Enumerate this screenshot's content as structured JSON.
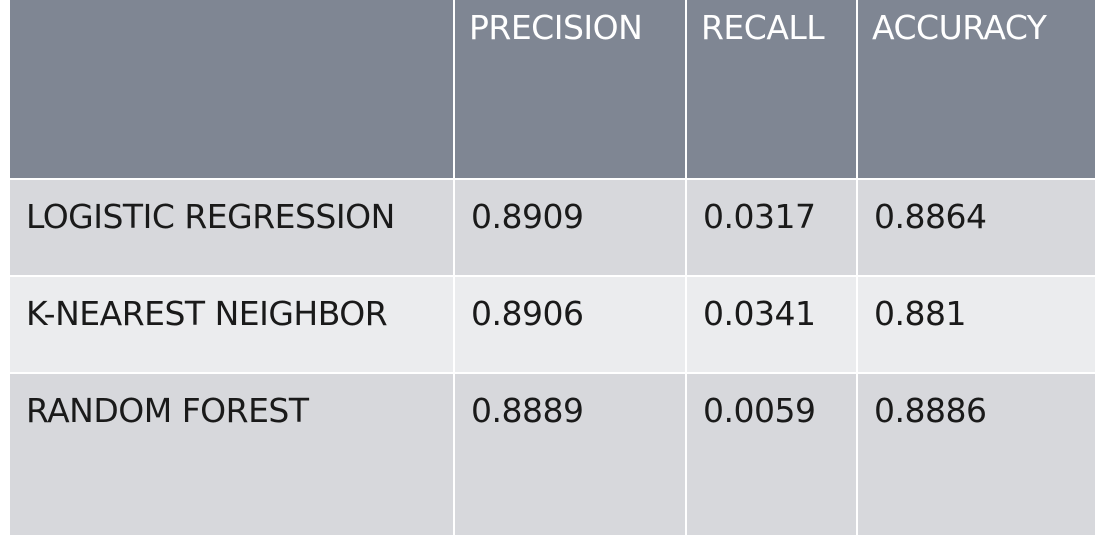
{
  "table": {
    "columns": [
      "",
      "PRECISION",
      "RECALL",
      "ACCURACY"
    ],
    "rows": [
      {
        "model": "LOGISTIC REGRESSION",
        "precision": "0.8909",
        "recall": "0.0317",
        "accuracy": "0.8864"
      },
      {
        "model": "K-NEAREST NEIGHBOR",
        "precision": "0.8906",
        "recall": "0.0341",
        "accuracy": "0.881"
      },
      {
        "model": "RANDOM FOREST",
        "precision": "0.8889",
        "recall": "0.0059",
        "accuracy": "0.8886"
      }
    ]
  },
  "colors": {
    "header_bg": "#7f8693",
    "header_text": "#ffffff",
    "row_dark": "#d7d8dc",
    "row_light": "#ebecee",
    "grid_line": "#ffffff"
  }
}
